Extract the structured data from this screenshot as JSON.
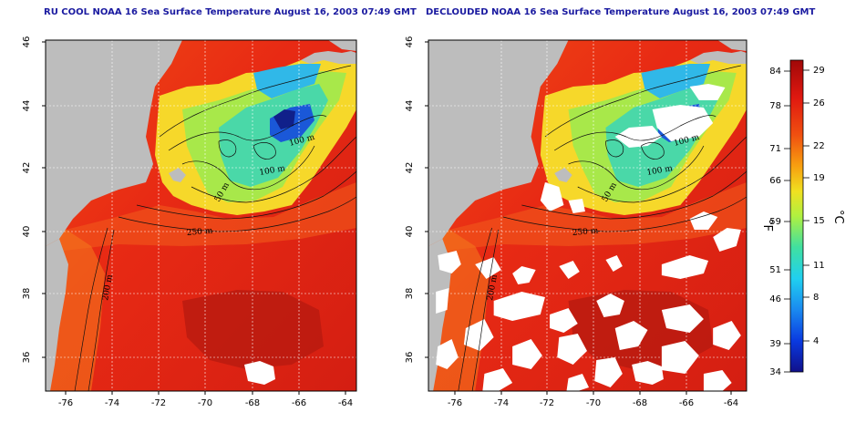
{
  "panels": [
    {
      "id": "left",
      "title": "RU COOL NOAA 16 Sea Surface Temperature August 16, 2003 07:49 GMT",
      "clouds_removed": false
    },
    {
      "id": "right",
      "title": "DECLOUDED NOAA 16 Sea Surface Temperature August 16, 2003 07:49 GMT",
      "clouds_removed": true
    }
  ],
  "axes": {
    "lon_ticks": [
      "-76",
      "-74",
      "-72",
      "-70",
      "-68",
      "-66",
      "-64"
    ],
    "lat_ticks": [
      "46",
      "44",
      "42",
      "40",
      "38",
      "36"
    ]
  },
  "contour_labels": [
    "100 m",
    "100 m",
    "50 m",
    "250 m",
    "200 m",
    "50 m",
    "200 m"
  ],
  "colorbar": {
    "unit_f": "°F",
    "unit_c": "°C",
    "f_ticks": [
      "84",
      "78",
      "71",
      "66",
      "59",
      "51",
      "46",
      "39",
      "34"
    ],
    "c_ticks": [
      "29",
      "26",
      "22",
      "19",
      "15",
      "11",
      "8",
      "4"
    ]
  },
  "colors": {
    "land": "#bdbdbd",
    "cloud": "#ffffff",
    "title": "#1a1aa0",
    "warm": "#e8201a",
    "cold": "#0a1aa0"
  }
}
